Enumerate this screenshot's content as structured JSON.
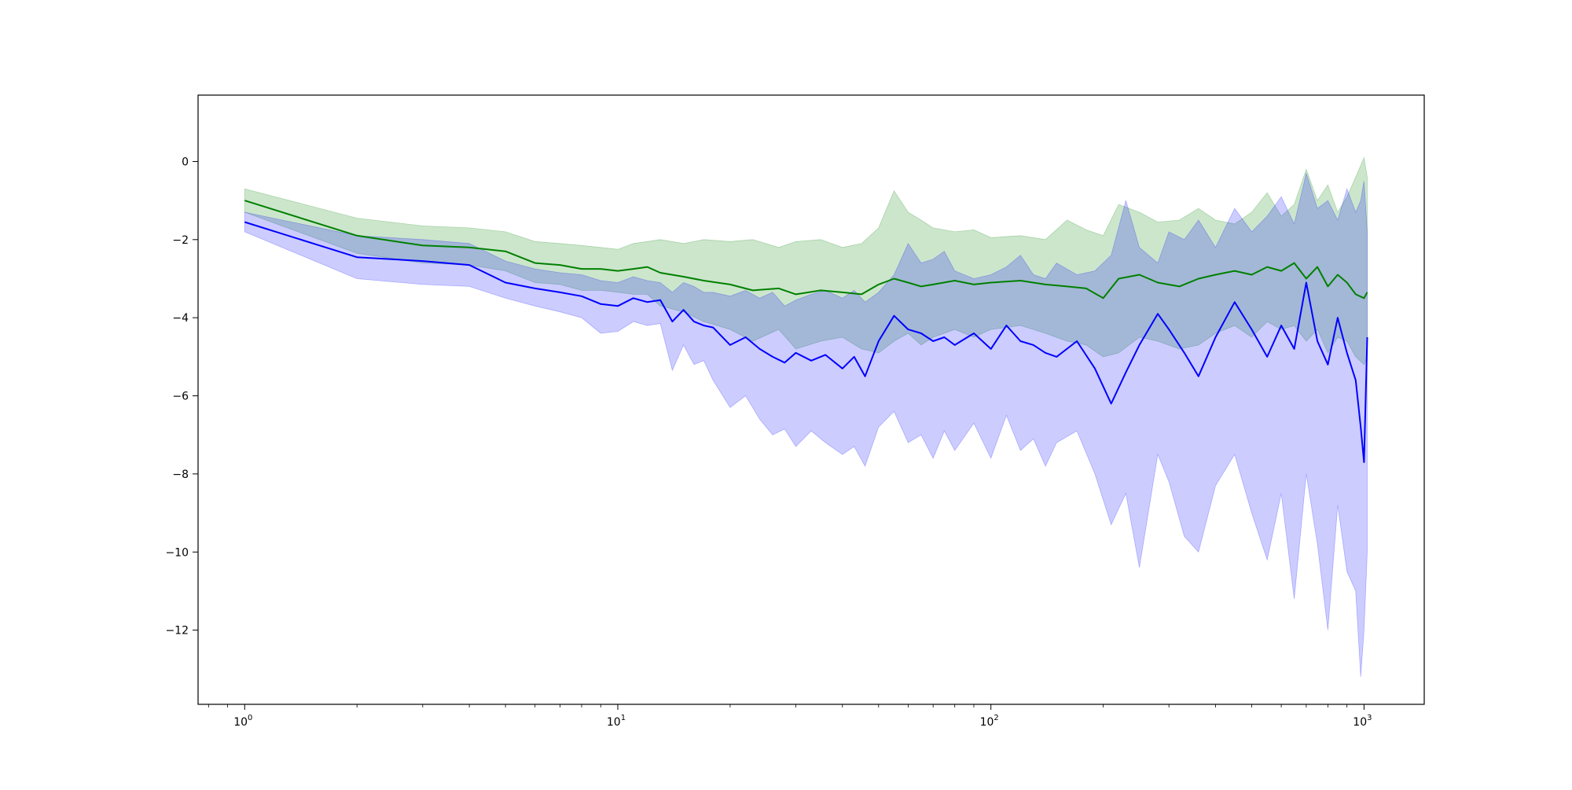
{
  "chart_data": {
    "type": "line",
    "title": "",
    "xlabel": "",
    "ylabel": "",
    "x_scale": "log",
    "xlim": [
      0.75,
      1450
    ],
    "ylim": [
      -13.9,
      1.7
    ],
    "grid": false,
    "legend": "none",
    "x_ticks": [
      {
        "value": 1,
        "base": "10",
        "exp": "0"
      },
      {
        "value": 10,
        "base": "10",
        "exp": "1"
      },
      {
        "value": 100,
        "base": "10",
        "exp": "2"
      },
      {
        "value": 1000,
        "base": "10",
        "exp": "3"
      }
    ],
    "y_ticks": [
      {
        "value": 0,
        "label": "0"
      },
      {
        "value": -2,
        "label": "−2"
      },
      {
        "value": -4,
        "label": "−4"
      },
      {
        "value": -6,
        "label": "−6"
      },
      {
        "value": -8,
        "label": "−8"
      },
      {
        "value": -10,
        "label": "−10"
      },
      {
        "value": -12,
        "label": "−12"
      }
    ],
    "series": [
      {
        "color": "#008000",
        "band_color": "#008000",
        "band_opacity": 0.2,
        "x": [
          1,
          2,
          3,
          4,
          5,
          6,
          7,
          8,
          9,
          10,
          11,
          12,
          13,
          15,
          17,
          20,
          23,
          27,
          30,
          35,
          40,
          45,
          50,
          55,
          60,
          65,
          70,
          80,
          90,
          100,
          120,
          140,
          160,
          180,
          200,
          220,
          250,
          280,
          320,
          360,
          400,
          450,
          500,
          550,
          600,
          650,
          700,
          750,
          800,
          850,
          900,
          950,
          1000,
          1020
        ],
        "mean": [
          -1.0,
          -1.9,
          -2.15,
          -2.2,
          -2.3,
          -2.6,
          -2.65,
          -2.75,
          -2.75,
          -2.8,
          -2.75,
          -2.7,
          -2.85,
          -2.95,
          -3.05,
          -3.15,
          -3.3,
          -3.25,
          -3.4,
          -3.3,
          -3.35,
          -3.4,
          -3.15,
          -3.0,
          -3.1,
          -3.2,
          -3.15,
          -3.05,
          -3.15,
          -3.1,
          -3.05,
          -3.15,
          -3.2,
          -3.25,
          -3.5,
          -3.0,
          -2.9,
          -3.1,
          -3.2,
          -3.0,
          -2.9,
          -2.8,
          -2.9,
          -2.7,
          -2.8,
          -2.6,
          -3.0,
          -2.7,
          -3.2,
          -2.9,
          -3.1,
          -3.4,
          -3.5,
          -3.35
        ],
        "upper": [
          -0.7,
          -1.45,
          -1.65,
          -1.7,
          -1.8,
          -2.05,
          -2.1,
          -2.15,
          -2.2,
          -2.25,
          -2.1,
          -2.05,
          -2.0,
          -2.1,
          -2.0,
          -2.05,
          -2.0,
          -2.2,
          -2.05,
          -2.0,
          -2.2,
          -2.1,
          -1.7,
          -0.75,
          -1.3,
          -1.5,
          -1.7,
          -1.8,
          -1.75,
          -1.95,
          -1.9,
          -2.0,
          -1.5,
          -1.75,
          -1.9,
          -1.1,
          -1.3,
          -1.55,
          -1.5,
          -1.2,
          -1.5,
          -1.6,
          -1.3,
          -0.8,
          -1.4,
          -1.1,
          -0.2,
          -1.0,
          -0.6,
          -1.3,
          -0.9,
          -0.4,
          0.1,
          -0.4
        ],
        "lower": [
          -1.3,
          -2.35,
          -2.6,
          -2.65,
          -2.8,
          -3.1,
          -3.15,
          -3.3,
          -3.3,
          -3.35,
          -3.4,
          -3.4,
          -3.7,
          -3.85,
          -4.1,
          -4.3,
          -4.6,
          -4.3,
          -4.8,
          -4.6,
          -4.5,
          -4.8,
          -4.9,
          -4.6,
          -4.4,
          -4.7,
          -4.5,
          -4.3,
          -4.5,
          -4.3,
          -4.2,
          -4.4,
          -4.6,
          -4.7,
          -5.0,
          -4.9,
          -4.5,
          -4.6,
          -4.8,
          -4.7,
          -4.4,
          -4.2,
          -4.5,
          -4.1,
          -4.3,
          -4.2,
          -4.6,
          -4.3,
          -4.9,
          -4.5,
          -4.6,
          -5.0,
          -5.2,
          -5.0
        ]
      },
      {
        "color": "#0000ff",
        "band_color": "#0000ff",
        "band_opacity": 0.2,
        "x": [
          1,
          2,
          3,
          4,
          5,
          6,
          7,
          8,
          9,
          10,
          11,
          12,
          13,
          14,
          15,
          16,
          17,
          18,
          20,
          22,
          24,
          26,
          28,
          30,
          33,
          36,
          40,
          43,
          46,
          50,
          55,
          60,
          65,
          70,
          75,
          80,
          90,
          100,
          110,
          120,
          130,
          140,
          150,
          170,
          190,
          210,
          230,
          250,
          280,
          300,
          330,
          360,
          400,
          450,
          500,
          550,
          600,
          650,
          700,
          750,
          800,
          850,
          900,
          950,
          980,
          1000,
          1020
        ],
        "mean": [
          -1.55,
          -2.45,
          -2.55,
          -2.65,
          -3.1,
          -3.25,
          -3.35,
          -3.45,
          -3.65,
          -3.7,
          -3.5,
          -3.6,
          -3.55,
          -4.1,
          -3.8,
          -4.1,
          -4.2,
          -4.25,
          -4.7,
          -4.5,
          -4.8,
          -5.0,
          -5.15,
          -4.9,
          -5.1,
          -4.95,
          -5.3,
          -5.0,
          -5.5,
          -4.6,
          -3.95,
          -4.3,
          -4.4,
          -4.6,
          -4.5,
          -4.7,
          -4.4,
          -4.8,
          -4.2,
          -4.6,
          -4.7,
          -4.9,
          -5.0,
          -4.6,
          -5.3,
          -6.2,
          -5.4,
          -4.7,
          -3.9,
          -4.3,
          -4.9,
          -5.5,
          -4.5,
          -3.6,
          -4.3,
          -5.0,
          -4.2,
          -4.8,
          -3.1,
          -4.6,
          -5.2,
          -4.0,
          -4.9,
          -5.6,
          -6.8,
          -7.7,
          -4.5
        ],
        "upper": [
          -1.3,
          -1.9,
          -2.0,
          -2.1,
          -2.55,
          -2.75,
          -2.85,
          -2.9,
          -3.05,
          -3.1,
          -2.95,
          -3.05,
          -3.1,
          -3.35,
          -3.1,
          -3.2,
          -3.35,
          -3.35,
          -3.45,
          -3.3,
          -3.5,
          -3.35,
          -3.7,
          -3.55,
          -3.4,
          -3.3,
          -3.5,
          -3.3,
          -3.6,
          -3.35,
          -2.9,
          -2.1,
          -2.6,
          -2.5,
          -2.3,
          -2.8,
          -3.0,
          -2.9,
          -2.7,
          -2.4,
          -2.9,
          -3.0,
          -2.6,
          -2.9,
          -2.8,
          -2.4,
          -1.0,
          -2.2,
          -2.6,
          -1.8,
          -2.0,
          -1.5,
          -2.2,
          -1.2,
          -1.8,
          -1.4,
          -0.9,
          -1.6,
          -0.3,
          -1.2,
          -1.0,
          -1.5,
          -0.7,
          -1.3,
          -1.0,
          -0.5,
          -1.8
        ],
        "lower": [
          -1.8,
          -3.0,
          -3.15,
          -3.2,
          -3.5,
          -3.7,
          -3.85,
          -4.0,
          -4.4,
          -4.35,
          -4.1,
          -4.2,
          -4.15,
          -5.35,
          -4.7,
          -5.2,
          -5.1,
          -5.6,
          -6.3,
          -6.0,
          -6.6,
          -7.0,
          -6.85,
          -7.3,
          -6.9,
          -7.2,
          -7.5,
          -7.3,
          -7.8,
          -6.8,
          -6.4,
          -7.2,
          -7.0,
          -7.6,
          -6.9,
          -7.4,
          -6.7,
          -7.6,
          -6.5,
          -7.4,
          -7.1,
          -7.8,
          -7.2,
          -6.9,
          -8.0,
          -9.3,
          -8.5,
          -10.4,
          -7.5,
          -8.2,
          -9.6,
          -10.0,
          -8.3,
          -7.5,
          -9.0,
          -10.2,
          -8.5,
          -11.2,
          -8.0,
          -9.8,
          -12.0,
          -8.8,
          -10.5,
          -11.0,
          -13.2,
          -12.0,
          -10.0
        ]
      }
    ]
  }
}
